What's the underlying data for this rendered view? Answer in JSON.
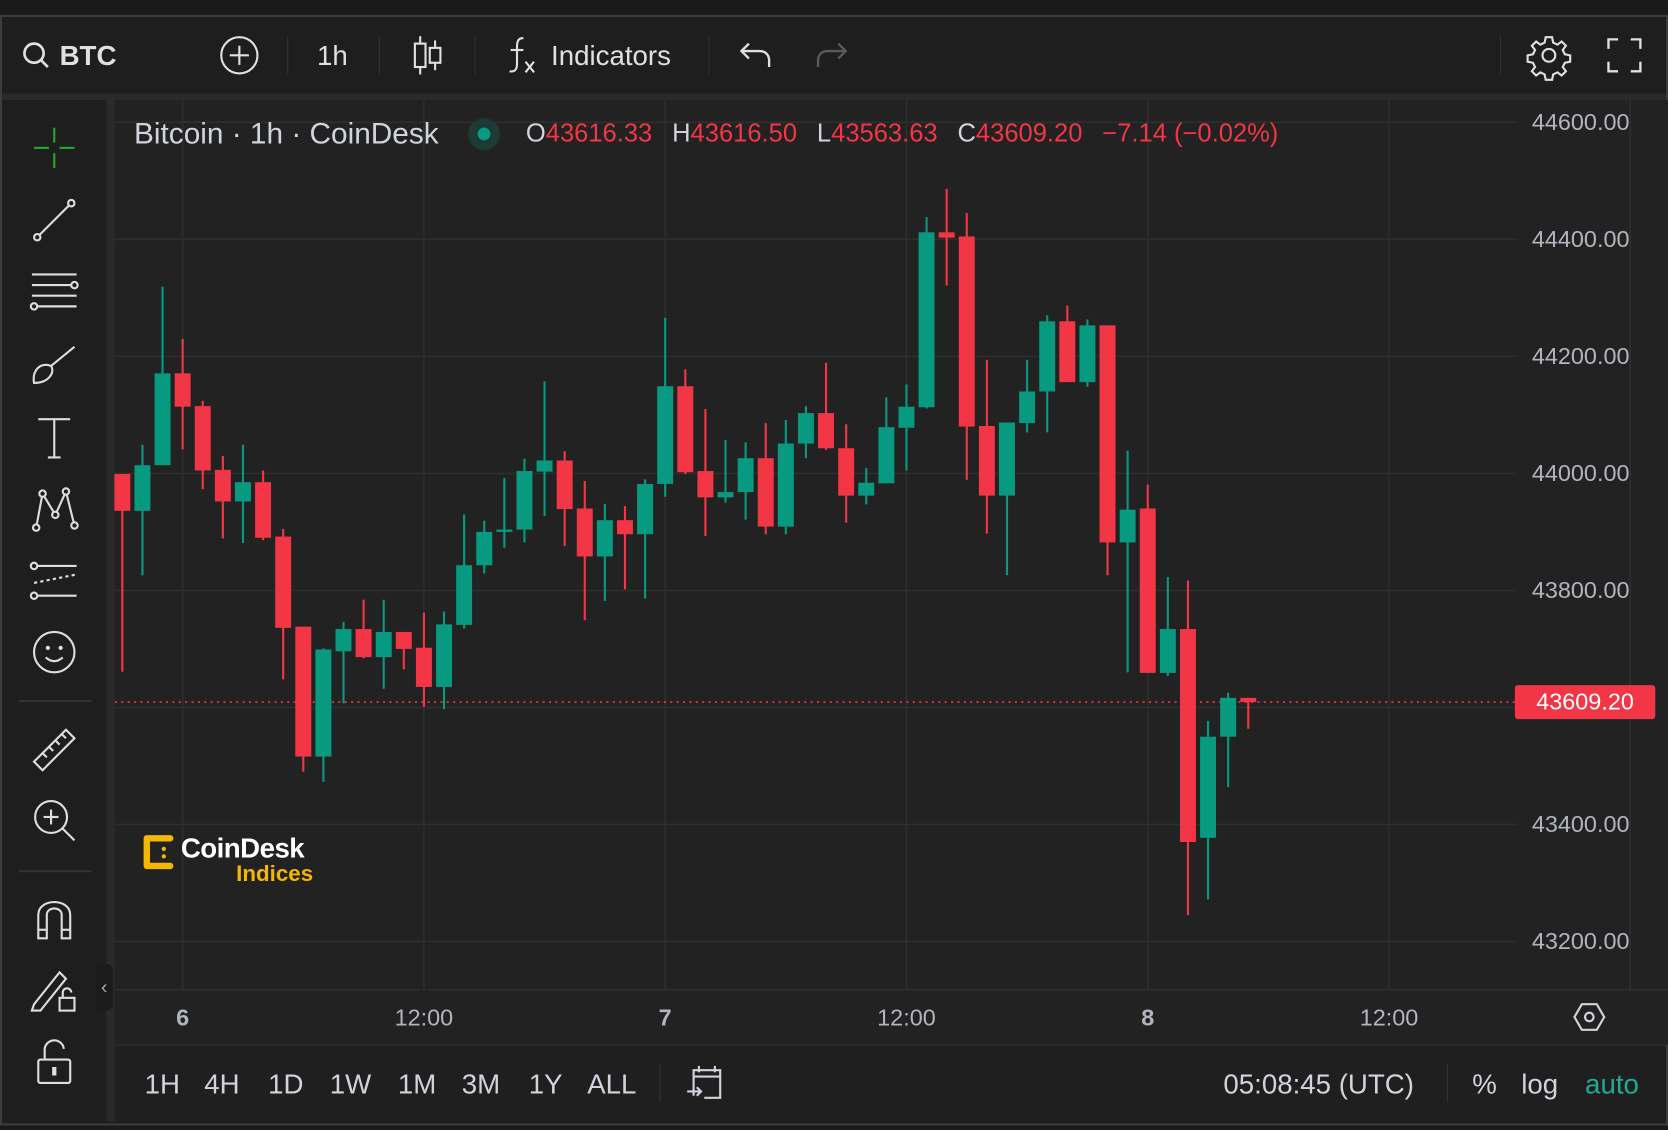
{
  "toolbar": {
    "symbol": "BTC",
    "interval": "1h",
    "indicators_label": "Indicators",
    "icons": [
      "search-icon",
      "add-compare-icon",
      "candle-type-icon",
      "function-icon",
      "undo-icon",
      "redo-icon",
      "gear-icon",
      "fullscreen-icon"
    ]
  },
  "legend": {
    "title": "Bitcoin · 1h · CoinDesk",
    "o_key": "O",
    "o": "43616.33",
    "h_key": "H",
    "h": "43616.50",
    "l_key": "L",
    "l": "43563.63",
    "c_key": "C",
    "c": "43609.20",
    "change": "−7.14 (−0.02%)"
  },
  "left_tools": [
    "crosshair-icon",
    "trend-line-icon",
    "fib-lines-icon",
    "brush-icon",
    "text-icon",
    "pattern-icon",
    "forecast-icon",
    "emoji-icon",
    "ruler-icon",
    "zoom-in-icon",
    "magnet-icon",
    "lock-drawings-icon",
    "lock-icon"
  ],
  "logo": {
    "line1": "CoinDesk",
    "line2": "Indices"
  },
  "price_axis": {
    "labels": [
      "44600.00",
      "44400.00",
      "44200.00",
      "44000.00",
      "43800.00",
      "43600.00",
      "43400.00",
      "43200.00"
    ],
    "current": "43609.20"
  },
  "time_axis": {
    "labels": [
      {
        "text": "6",
        "bold": true
      },
      {
        "text": "12:00",
        "bold": false
      },
      {
        "text": "7",
        "bold": true
      },
      {
        "text": "12:00",
        "bold": false
      },
      {
        "text": "8",
        "bold": true
      },
      {
        "text": "12:00",
        "bold": false
      }
    ]
  },
  "bottom": {
    "ranges": [
      "1H",
      "4H",
      "1D",
      "1W",
      "1M",
      "3M",
      "1Y",
      "ALL"
    ],
    "clock": "05:08:45 (UTC)",
    "percent": "%",
    "log": "log",
    "auto": "auto"
  },
  "colors": {
    "up": "#089981",
    "down": "#f23645",
    "auto": "#22ab94",
    "crosshair": "#22ab22",
    "logo": "#f5b800"
  },
  "chart_data": {
    "type": "candlestick",
    "title": "Bitcoin · 1h · CoinDesk",
    "interval": "1h",
    "x_start": "5 21:00",
    "ylim": [
      43150,
      44620
    ],
    "grid": true,
    "current_price": 43609.2,
    "candles": [
      [
        43999,
        43999,
        43661,
        43936
      ],
      [
        43936,
        44049,
        43826,
        44014
      ],
      [
        44014,
        44319,
        44014,
        44171
      ],
      [
        44171,
        44230,
        44041,
        44114
      ],
      [
        44115,
        44124,
        43973,
        44005
      ],
      [
        44006,
        44030,
        43889,
        43952
      ],
      [
        43952,
        44049,
        43881,
        43985
      ],
      [
        43985,
        44005,
        43886,
        43890
      ],
      [
        43892,
        43905,
        43648,
        43736
      ],
      [
        43738,
        43738,
        43490,
        43516
      ],
      [
        43516,
        43701,
        43473,
        43699
      ],
      [
        43696,
        43746,
        43607,
        43734
      ],
      [
        43734,
        43784,
        43684,
        43686
      ],
      [
        43686,
        43784,
        43632,
        43729
      ],
      [
        43729,
        43729,
        43665,
        43700
      ],
      [
        43702,
        43762,
        43601,
        43635
      ],
      [
        43635,
        43764,
        43597,
        43742
      ],
      [
        43741,
        43930,
        43735,
        43843
      ],
      [
        43843,
        43919,
        43829,
        43900
      ],
      [
        43900,
        43992,
        43873,
        43904
      ],
      [
        43904,
        44025,
        43882,
        44004
      ],
      [
        44003,
        44157,
        43927,
        44022
      ],
      [
        44022,
        44038,
        43876,
        43939
      ],
      [
        43940,
        43987,
        43749,
        43858
      ],
      [
        43858,
        43948,
        43782,
        43920
      ],
      [
        43920,
        43944,
        43802,
        43896
      ],
      [
        43896,
        43990,
        43786,
        43982
      ],
      [
        43982,
        44266,
        43960,
        44149
      ],
      [
        44149,
        44178,
        43999,
        44002
      ],
      [
        44004,
        44110,
        43893,
        43959
      ],
      [
        43959,
        44057,
        43950,
        43968
      ],
      [
        43968,
        44053,
        43921,
        44026
      ],
      [
        44026,
        44086,
        43896,
        43909
      ],
      [
        43909,
        44091,
        43896,
        44051
      ],
      [
        44051,
        44115,
        44026,
        44103
      ],
      [
        44103,
        44189,
        44040,
        44043
      ],
      [
        44043,
        44084,
        43916,
        43962
      ],
      [
        43962,
        44009,
        43947,
        43984
      ],
      [
        43983,
        44130,
        43983,
        44079
      ],
      [
        44078,
        44152,
        44005,
        44114
      ],
      [
        44113,
        44438,
        44111,
        44412
      ],
      [
        44412,
        44486,
        44321,
        44403
      ],
      [
        44405,
        44445,
        43989,
        44080
      ],
      [
        44081,
        44194,
        43897,
        43962
      ],
      [
        43962,
        44087,
        43826,
        44087
      ],
      [
        44086,
        44194,
        44070,
        44140
      ],
      [
        44140,
        44270,
        44070,
        44260
      ],
      [
        44260,
        44287,
        44156,
        44156
      ],
      [
        44156,
        44263,
        44148,
        44253
      ],
      [
        44253,
        44253,
        43826,
        43882
      ],
      [
        43882,
        44039,
        43660,
        43938
      ],
      [
        43940,
        43981,
        43659,
        43659
      ],
      [
        43659,
        43823,
        43654,
        43734
      ],
      [
        43734,
        43817,
        43245,
        43370
      ],
      [
        43377,
        43577,
        43272,
        43550
      ],
      [
        43550,
        43625,
        43464,
        43616.33
      ],
      [
        43616.33,
        43616.5,
        43563.63,
        43609.2
      ]
    ]
  }
}
